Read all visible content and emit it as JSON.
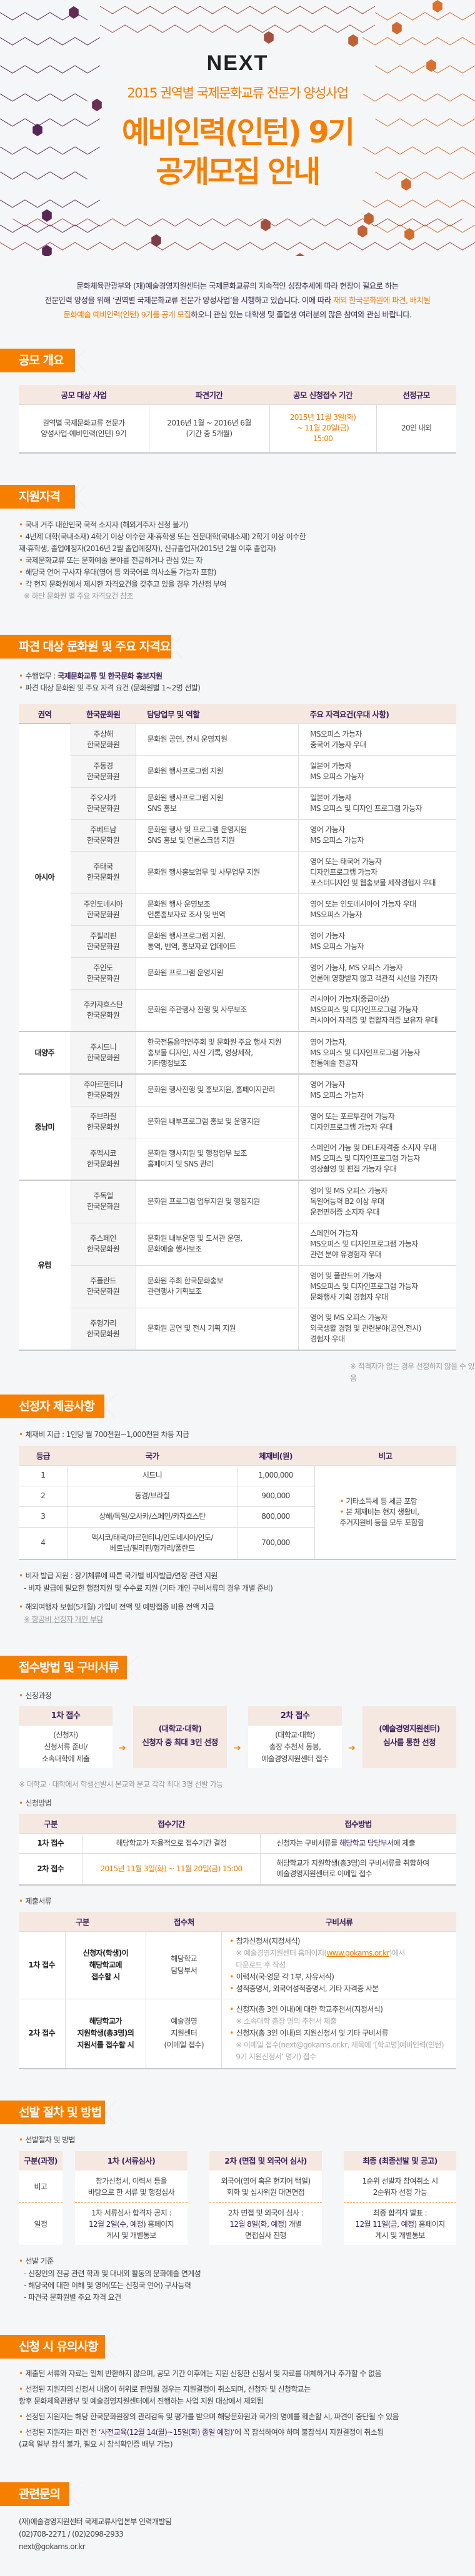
{
  "colors": {
    "accent": "#f77f00",
    "header_bg": "#f5e8e0",
    "header_text": "#3b1f5e",
    "background": "#f5f6f8"
  },
  "hero": {
    "logo": "NEXT",
    "subtitle": "2015 권역별 국제문화교류 전문가 양성사업",
    "title_line1": "예비인력(인턴) 9기",
    "title_line2": "공개모집 안내"
  },
  "intro": {
    "line1": "문화체육관광부와 (재)예술경영지원센터는 국제문화교류의 지속적인 성장추세에 따라 현장이 필요로 하는",
    "line2a": "전문인력 양성을 위해 ‘권역별 국제문화교류 전문가 양성사업’을 시행하고 있습니다. 이에 따라 ",
    "line2b": "재외 한국문화원에 파견, 배치될",
    "line3a": "문화예술 예비인력(인턴) 9기를 공개 모집",
    "line3b": "하오니 관심 있는 대학생 및 졸업생 여러분의 많은 참여와 관심 바랍니다."
  },
  "overview": {
    "title": "공모 개요",
    "headers": [
      "공모 대상 사업",
      "파견기간",
      "공모 신청접수 기간",
      "선정규모"
    ],
    "row": [
      "권역별 국제문화교류 전문가\n양성사업-예비인력(인턴) 9기",
      "2016년 1월 ~ 2016년 6월\n(기간 중 5개월)",
      "2015년 11월 3일(화)\n~ 11월 20일(금)\n15:00",
      "20인 내외"
    ]
  },
  "eligibility": {
    "title": "지원자격",
    "items": [
      "국내 거주 대한민국 국적 소지자 (해외거주자 신청 불가)",
      "4년제 대학(국내소재) 4학기 이상 이수한 재·휴학생 또는 전문대학(국내소재) 2학기 이상 이수한\n재·휴학생, 졸업예정자(2016년 2월 졸업예정자), 신규졸업자(2015년 2월 이후 졸업자)",
      "국제문화교류 또는 문화예술 분야를 전공하거나 관심 있는 자",
      "해당국 언어 구사자 우대(영어 등 외국어로 의사소통 가능자 포함)",
      "각 현지 문화원에서 제시한 자격요건을 갖추고 있을 경우 가산점 부여"
    ],
    "note": "※ 하단 문화원 별 주요 자격요건 참조"
  },
  "centers": {
    "title": "파견 대상 문화원 및 주요 자격요건",
    "duty_label": "수행업무 : ",
    "duty_value": "국제문화교류 및 한국문화 홍보지원",
    "subtitle": "파견 대상 문화원 및 주요 자격 요건 (문화원별 1~2명 선발)",
    "headers": [
      "권역",
      "한국문화원",
      "담당업무 및 역할",
      "주요 자격요건(우대 사항)"
    ],
    "regions": [
      {
        "name": "아시아",
        "rows": [
          [
            "주상해\n한국문화원",
            "문화원 공연, 전시 운영지원",
            "MS오피스 가능자\n중국어 가능자 우대"
          ],
          [
            "주동경\n한국문화원",
            "문화원 행사프로그램 지원",
            "일본어 가능자\nMS 오피스 가능자"
          ],
          [
            "주오사카\n한국문화원",
            "문화원 행사프로그램 지원\nSNS 홍보",
            "일본어 가능자\nMS 오피스 및 디자인 프로그램 가능자"
          ],
          [
            "주베트남\n한국문화원",
            "문화원 행사 및 프로그램 운영지원\nSNS 홍보 및 언론스크랩 지원",
            "영어 가능자\nMS 오피스 가능자"
          ],
          [
            "주태국\n한국문화원",
            "문화원 행사홍보업무 및 사무업무 지원",
            "영어 또는 태국어 가능자\n디자인프로그램 가능자\n포스터디자인 및 웹홍보물 제작경험자 우대"
          ],
          [
            "주인도네시아\n한국문화원",
            "문화원 행사 운영보조\n언론홍보자료 조사 및 번역",
            "영어 또는 인도네시아어 가능자 우대\nMS오피스 가능자"
          ],
          [
            "주필리핀\n한국문화원",
            "문화원 행사프로그램 지원,\n통역, 번역, 홍보자료 업데이트",
            "영어 가능자\nMS 오피스 가능자"
          ],
          [
            "주인도\n한국문화원",
            "문화원 프로그램 운영지원",
            "영어 가능자, MS 오피스 가능자\n언론에 영향받지 않고 객관적 시선을 가진자"
          ],
          [
            "주카자흐스탄\n한국문화원",
            "문화원 주관행사 진행 및 사무보조",
            "러시아어 가능자(중급이상)\nMS오피스 및 디자인프로그램 가능자\n러시아어 자격증 및 컴활자격증 보유자 우대"
          ]
        ]
      },
      {
        "name": "대양주",
        "rows": [
          [
            "주시드니\n한국문화원",
            "한국전통음악연주회 및 문화원 주요 행사 지원\n홍보물 디자인, 사진 기록, 영상제작,\n기타행정보조",
            "영어 가능자,\nMS 오피스 및 디자인프로그램 가능자\n전통예술 전공자"
          ]
        ]
      },
      {
        "name": "중남미",
        "rows": [
          [
            "주아르헨티나\n한국문화원",
            "문화원 행사진행 및 홍보지원, 홈페이지관리",
            "영어 가능자\nMS 오피스 가능자"
          ],
          [
            "주브라질\n한국문화원",
            "문화원 내부프로그램 홍보 및 운영지원",
            "영어 또는 포르투갈어 가능자\n디자인프로그램 가능자 우대"
          ],
          [
            "주멕시코\n한국문화원",
            "문화원 행사지원 및 행정업무 보조\n홈페이지 및 SNS 관리",
            "스페인어 가능 및 DELE자격증 소지자 우대\nMS 오피스 및 디자인프로그램 가능자\n영상촬영 및 편집 가능자 우대"
          ]
        ]
      },
      {
        "name": "유럽",
        "rows": [
          [
            "주독일\n한국문화원",
            "문화원 프로그램 업무지원 및 행정지원",
            "영어 및 MS 오피스 가능자\n독일어능력 B2 이상 우대\n운전면허증 소지자 우대"
          ],
          [
            "주스페인\n한국문화원",
            "문화원 내부운영 및 도서관 운영,\n문화예술 행사보조",
            "스페인어 가능자\nMS오피스 및 디자인프로그램 가능자\n관련 분야 유경험자 우대"
          ],
          [
            "주폴란드\n한국문화원",
            "문화원 주최 한국문화홍보\n관련행사 기획보조",
            "영어 및 폴란드어 가능자\nMS오피스 및 디자인프로그램 가능자\n문화행사 기획 경험자 우대"
          ],
          [
            "주헝가리\n한국문화원",
            "문화원 공연 및 전시 기획 지원",
            "영어 및 MS 오피스 가능자\n외국생활 경험 및 관련분야(공연,전시)\n경험자 우대"
          ]
        ]
      }
    ],
    "note": "※ 적격자가 없는 경우 선정하지 않을 수 있음"
  },
  "benefits": {
    "title": "선정자 제공사항",
    "stipend": "체재비 지급 : 1인당 월 700천원~1,000천원 차등 지급",
    "headers": [
      "등급",
      "국가",
      "체재비(원)",
      "비고"
    ],
    "rows": [
      [
        "1",
        "시드니",
        "1,000,000"
      ],
      [
        "2",
        "동경/브라질",
        "900,000"
      ],
      [
        "3",
        "상해/독일/오사카/스페인/카자흐스탄",
        "800,000"
      ],
      [
        "4",
        "멕시코/태국/아르헨티나/인도네시아/인도/\n베트남/필리핀/헝가리/폴란드",
        "700,000"
      ]
    ],
    "remarks": [
      "기타소득세 등 세금 포함",
      "본 체재비는 현지 생활비,\n주거지원비 등을 모두 포함함"
    ],
    "visa": "비자 발급 지원 : 장기체류에 따른 국가별 비자발급/연장 관련 지원",
    "visa_sub": "- 비자 발급에 필요한 행정지원 및 수수료 지원 (기타 개인 구비서류의 경우 개별 준비)",
    "insurance": "해외여행자 보험(5개월) 가입비 전액 및 예방접종 비용 전액 지급",
    "airfare_note": "※ 항공비 선정자 개인 부담"
  },
  "apply": {
    "title": "접수방법 및 구비서류",
    "process_label": "신청과정",
    "flow": [
      {
        "head": "1차 접수",
        "body": "(신청자)\n신청서류 준비/\n소속대학에 제출"
      },
      {
        "body": "(대학교·대학)\n신청자 중 최대 3인 선정"
      },
      {
        "head": "2차 접수",
        "body": "(대학교·대학)\n총장 추천서 동봉,\n예술경영지원센터 접수"
      },
      {
        "body": "(예술경영지원센터)\n심사를 통한 선정"
      }
    ],
    "flow_note": "※ 대학교 · 대학에서 학생선발시 본교와 분교 각각 최대 3명 선발 가능",
    "method_label": "신청방법",
    "method_headers": [
      "구분",
      "접수기간",
      "접수방법"
    ],
    "method_rows": [
      {
        "stage": "1차 접수",
        "period": "해당학교가 자율적으로 접수기간 결정",
        "method_a": "신청자는 구비서류를 ",
        "method_hl": "해당학교 담당부서",
        "method_b": "에 제출"
      },
      {
        "stage": "2차 접수",
        "period": "2015년 11월 3일(화) ~ 11월 20일(금) 15:00",
        "method_a": "해당학교가 지원학생(총3명)의 구비서류를 취합하여\n예술경영지원센터로 이메일 접수",
        "method_hl": "",
        "method_b": ""
      }
    ],
    "docs_label": "제출서류",
    "docs_headers": [
      "구분",
      "접수처",
      "구비서류"
    ],
    "docs_rows": [
      {
        "stage": "1차 접수",
        "who": "신청자(학생)이\n해당학교에\n접수할 시",
        "where": "해당학교\n담당부서",
        "items": [
          {
            "text": "참가신청서(지정서식)",
            "note_a": "※ 예술경영지원센터 홈페이지(",
            "link": "www.gokams.or.kr",
            "note_b": ")에서\n다운로드 후 작성"
          },
          {
            "text": "이력서(국·영문 각 1부, 자유서식)"
          },
          {
            "text": "성적증명서, 외국어성적증명서, 기타 자격증 사본"
          }
        ]
      },
      {
        "stage": "2차 접수",
        "who": "해당학교가\n지원학생(총3명)의\n지원서를 접수할 시",
        "where": "예술경영\n지원센터\n(이메일 접수)",
        "items": [
          {
            "text": "신청자(총 3인 이내)에 대한 학교추천서(지정서식)",
            "note_a": "※ 소속대학 총장 명의 추천서 제출"
          },
          {
            "text": "신청자(총 3인 이내)의 지원신청서 및 기타 구비서류",
            "note_a": "※ 이메일 접수(next@gokams.or.kr, 제목에 ‘[학교명]예비인력(인턴)\n9기 지원신청서’ 명기) 접수"
          }
        ]
      }
    ]
  },
  "selection": {
    "title": "선발 절차 및 방법",
    "label": "선발절차 및 방법",
    "columns": [
      {
        "head": "구분(과정)",
        "note": "비고",
        "schedule": "일정"
      },
      {
        "head": "1차 (서류심사)",
        "note": "참가신청서, 이력서 등을\n바탕으로 한 서류 및 행정심사",
        "schedule_a": "1차 서류심사 합격자 공지 :",
        "schedule_hl": "12월 2일(수, 예정)",
        "schedule_b": " 홈페이지\n게시 및 개별통보"
      },
      {
        "head": "2차 (면접 및 외국어 심사)",
        "note": "외국어(영어 혹은 현지어 택일)\n회화 및 심사위원 대면면접",
        "schedule_a": "2차 면접 및 외국어 심사 :",
        "schedule_hl": "12월 8일(화, 예정)",
        "schedule_b": " 개별\n면접심사 진행"
      },
      {
        "head": "최종 (최종선발 및 공고)",
        "note": "1순위 선발자 참여취소 시\n2순위자 선정 가능",
        "schedule_a": "최종 합격자 발표 :",
        "schedule_hl": "12월 11일(금, 예정)",
        "schedule_b": " 홈페이지\n게시 및 개별통보"
      }
    ],
    "criteria_label": "선발 기준",
    "criteria": [
      "- 신청인의 전공 관련 학과 및 대내외 활동의 문화예술 연계성",
      "- 해당국에 대한 이해 및 영어(또는 신청국 언어) 구사능력",
      "- 파견국 문화원별 주요 자격 요건"
    ]
  },
  "notice": {
    "title": "신청 시 유의사항",
    "items": [
      {
        "a": "제출된 서류와 자료는 일체 반환하지 않으며, 공모 기간 이후에는 지원 신청한 신청서 및 자료를 대체하거나 추가할 수 없음"
      },
      {
        "a": "선정된 지원자의 신청서 내용이 허위로 판명될 경우는 지원결정이 취소되며, 신청자 및 신청학교는\n항후 문화체육관광부 및 예술경영지원센터에서 진행하는 사업 지원 대상에서 제외됨"
      },
      {
        "a": "선정된 지원자는 해당 한국문화원장의 관리감독 및 평가를 받으며 해당문화원과 국가의 명예를 훼손할 시, 파견이 중단될 수 있음"
      },
      {
        "a": "선정된 지원자는 파견 전 ‘",
        "hl": "사전교육(12월 14(월)~15일(화) 종일 예정)",
        "b": "’에 꼭 참석하여야 하며 불참석시 지원결정이 취소됨\n(교육 일부 참석 불가, 필요 시 참석확인증 배부 가능)"
      }
    ]
  },
  "contact": {
    "title": "관련문의",
    "org": "(재)예술경영지원센터 국제교류사업본부 인력개발팀",
    "phone": "(02)708-2271 / (02)2098-2933",
    "email": "next@gokams.or.kr"
  }
}
